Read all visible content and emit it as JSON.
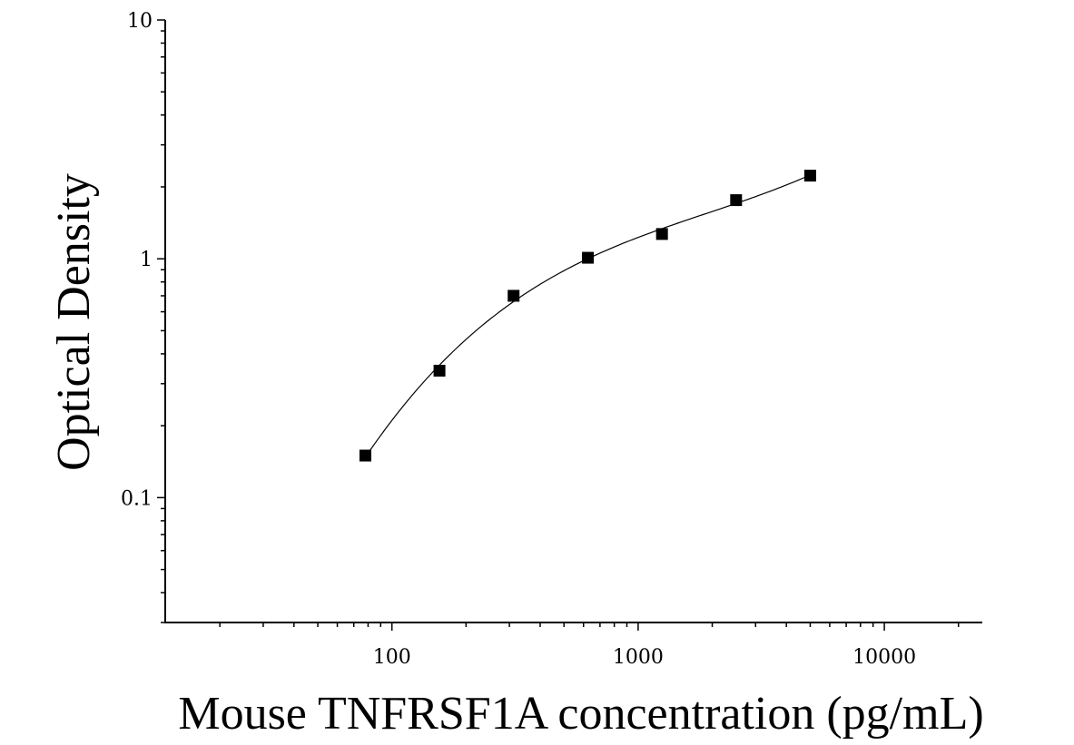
{
  "chart_data": {
    "type": "scatter",
    "title": "",
    "xlabel": "Mouse TNFRSF1A concentration (pg/mL)",
    "ylabel": "Optical Density",
    "x_scale": "log",
    "y_scale": "log",
    "xlim": [
      12,
      25000
    ],
    "ylim": [
      0.03,
      10
    ],
    "x_ticks": [
      {
        "value": 100,
        "label": "100"
      },
      {
        "value": 1000,
        "label": "1000"
      },
      {
        "value": 10000,
        "label": "10000"
      }
    ],
    "y_ticks": [
      {
        "value": 0.1,
        "label": "0.1"
      },
      {
        "value": 1,
        "label": "1"
      },
      {
        "value": 10,
        "label": "10"
      }
    ],
    "grid": false,
    "series": [
      {
        "marker": "square",
        "color": "#000000",
        "points": [
          {
            "x": 78,
            "y": 0.15
          },
          {
            "x": 156,
            "y": 0.34
          },
          {
            "x": 312,
            "y": 0.7
          },
          {
            "x": 625,
            "y": 1.01
          },
          {
            "x": 1250,
            "y": 1.27
          },
          {
            "x": 2500,
            "y": 1.76
          },
          {
            "x": 5000,
            "y": 2.23
          }
        ]
      }
    ],
    "fit_curve": {
      "color": "#000000",
      "x_range": [
        80,
        5000
      ]
    }
  }
}
